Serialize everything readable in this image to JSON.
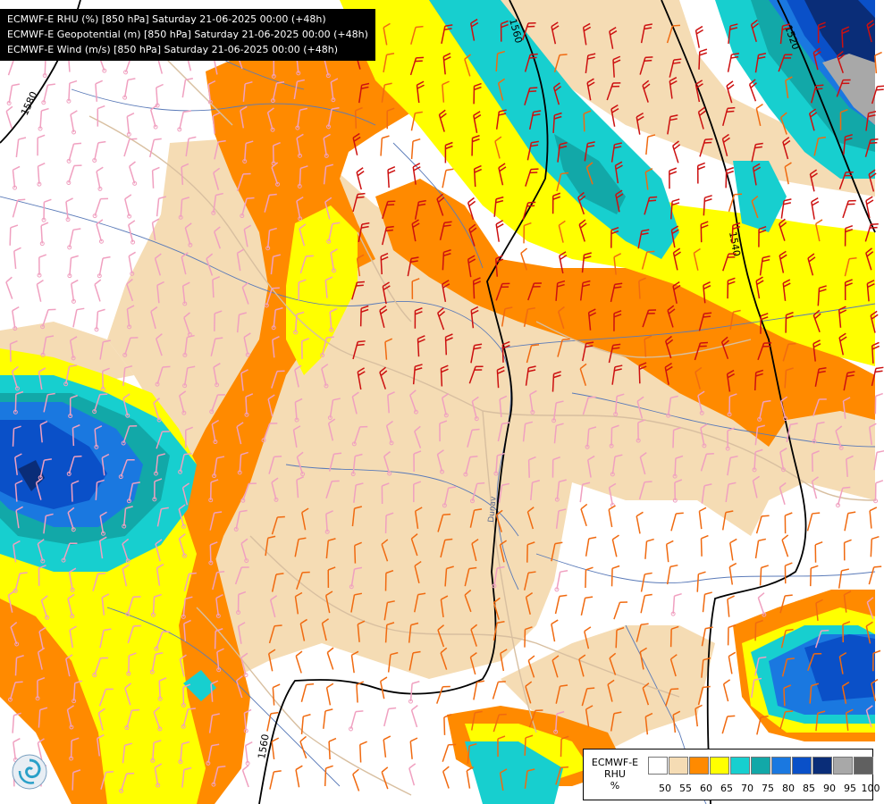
{
  "header": {
    "lines": [
      "ECMWF-E RHU (%) [850 hPa] Saturday 21-06-2025 00:00 (+48h)",
      "ECMWF-E Geopotential (m) [850 hPa] Saturday 21-06-2025 00:00 (+48h)",
      "ECMWF-E Wind (m/s) [850 hPa] Saturday 21-06-2025 00:00 (+48h)"
    ]
  },
  "legend": {
    "title_line1": "ECMWF-E",
    "title_line2": "RHU",
    "unit": "%",
    "ticks": [
      "50",
      "55",
      "60",
      "65",
      "70",
      "75",
      "80",
      "85",
      "90",
      "95",
      "100"
    ],
    "colors": [
      "#ffffff",
      "#f5dcb4",
      "#ff8a00",
      "#ffff00",
      "#17cfcf",
      "#12a8a8",
      "#1a78e0",
      "#0a50c8",
      "#0a2d78",
      "#a8a8a8",
      "#606060"
    ]
  },
  "contours": {
    "labels": [
      "1580",
      "1560",
      "1520",
      "1540",
      "1560"
    ]
  },
  "map_labels": {
    "river": "Dunav"
  },
  "colors": {
    "rh_50": "#ffffff",
    "rh_55": "#f5dcb4",
    "rh_60": "#ff8a00",
    "rh_65": "#ffff00",
    "rh_70": "#17cfcf",
    "rh_75": "#12a8a8",
    "rh_80": "#1a78e0",
    "rh_85": "#0a50c8",
    "rh_90": "#0a2d78",
    "rh_95": "#a8a8a8",
    "contour": "#000000",
    "river": "#5a7ab8",
    "border": "#d8bfa0",
    "wind_weak": "#f0a0c0",
    "wind_mid": "#f06a10",
    "wind_strong": "#cc1010"
  },
  "icons": {
    "logo": "ecmwf-swirl-logo-icon"
  }
}
